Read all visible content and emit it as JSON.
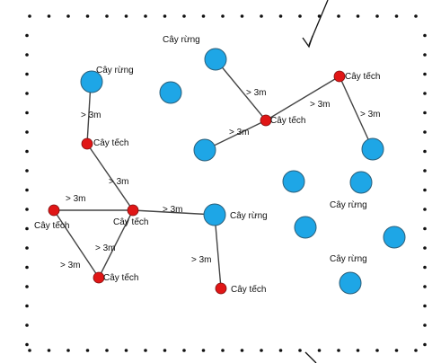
{
  "labels": {
    "forest": "Cây rừng",
    "teak": "Cây tếch",
    "distance": "> 3m"
  },
  "colors": {
    "forest_fill": "#1ea6e6",
    "teak_fill": "#e01616",
    "border_dots": "#111111"
  }
}
